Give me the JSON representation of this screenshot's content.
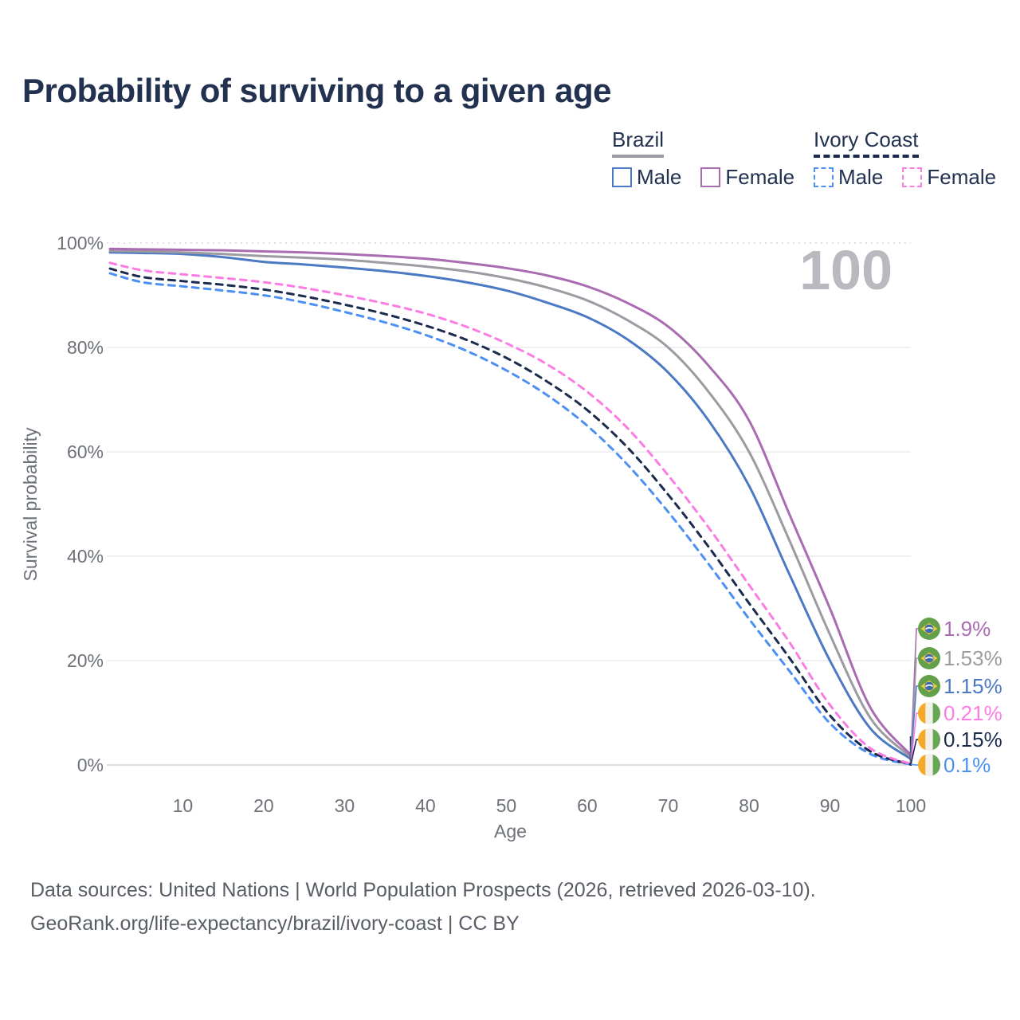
{
  "title": "Probability of surviving to a given age",
  "legend": {
    "groups": [
      {
        "label": "Brazil",
        "underline_color": "#9b9ba1",
        "underline_dashed": false,
        "items": [
          {
            "label": "Male",
            "color": "#4c79c4",
            "dashed": false
          },
          {
            "label": "Female",
            "color": "#a96cb1",
            "dashed": false
          }
        ]
      },
      {
        "label": "Ivory Coast",
        "underline_color": "#1b2b4d",
        "underline_dashed": true,
        "items": [
          {
            "label": "Male",
            "color": "#4b90f2",
            "dashed": true
          },
          {
            "label": "Female",
            "color": "#fb7de4",
            "dashed": true
          }
        ]
      }
    ]
  },
  "watermark_age": "100",
  "chart_data": {
    "type": "line",
    "title": "Probability of surviving to a given age",
    "xlabel": "Age",
    "ylabel": "Survival probability",
    "xlim": [
      1,
      100
    ],
    "ylim": [
      0,
      100
    ],
    "grid": true,
    "x_ticks": [
      10,
      20,
      30,
      40,
      50,
      60,
      70,
      80,
      90,
      100
    ],
    "y_tick_values": [
      0,
      20,
      40,
      60,
      80,
      100
    ],
    "y_tick_labels": [
      "0%",
      "20%",
      "40%",
      "60%",
      "80%",
      "100%"
    ],
    "x": [
      1,
      5,
      10,
      15,
      20,
      25,
      30,
      35,
      40,
      45,
      50,
      55,
      60,
      65,
      70,
      75,
      80,
      85,
      90,
      95,
      100
    ],
    "series": [
      {
        "name": "Brazil Female",
        "country": "Brazil",
        "sex": "Female",
        "flag": "brazil",
        "color": "#a96cb1",
        "dashed": false,
        "end_label": "1.9%",
        "values": [
          98.9,
          98.8,
          98.7,
          98.6,
          98.4,
          98.2,
          97.9,
          97.5,
          97.0,
          96.2,
          95.2,
          93.8,
          91.7,
          88.5,
          84.0,
          76.5,
          66.0,
          48.0,
          30.0,
          11.0,
          1.9
        ]
      },
      {
        "name": "Brazil Both sexes",
        "country": "Brazil",
        "sex": "Both",
        "flag": "brazil",
        "color": "#9b9ba1",
        "dashed": false,
        "end_label": "1.53%",
        "values": [
          98.5,
          98.4,
          98.2,
          97.9,
          97.5,
          97.2,
          96.8,
          96.2,
          95.5,
          94.6,
          93.3,
          91.5,
          89.0,
          85.2,
          80.0,
          71.5,
          60.0,
          43.0,
          25.0,
          9.0,
          1.53
        ]
      },
      {
        "name": "Brazil Male",
        "country": "Brazil",
        "sex": "Male",
        "flag": "brazil",
        "color": "#4c79c4",
        "dashed": false,
        "end_label": "1.15%",
        "values": [
          98.2,
          98.1,
          97.9,
          97.3,
          96.4,
          95.9,
          95.3,
          94.6,
          93.7,
          92.5,
          90.9,
          88.6,
          85.8,
          81.5,
          75.2,
          66.0,
          53.5,
          36.5,
          20.0,
          7.0,
          1.15
        ]
      },
      {
        "name": "Ivory Coast Female",
        "country": "Ivory Coast",
        "sex": "Female",
        "flag": "ivory-coast",
        "color": "#fb7de4",
        "dashed": true,
        "end_label": "0.21%",
        "values": [
          96.2,
          94.8,
          94.0,
          93.3,
          92.5,
          91.4,
          90.0,
          88.4,
          86.5,
          84.0,
          80.8,
          76.8,
          71.5,
          64.5,
          55.5,
          45.5,
          34.5,
          23.5,
          11.5,
          3.2,
          0.21
        ]
      },
      {
        "name": "Ivory Coast Both sexes",
        "country": "Ivory Coast",
        "sex": "Both",
        "flag": "ivory-coast",
        "color": "#1b2b4d",
        "dashed": true,
        "end_label": "0.15%",
        "values": [
          95.1,
          93.5,
          92.7,
          92.0,
          91.1,
          89.8,
          88.2,
          86.4,
          84.2,
          81.5,
          78.0,
          73.5,
          68.0,
          60.8,
          51.8,
          41.8,
          31.0,
          20.5,
          9.5,
          2.6,
          0.15
        ]
      },
      {
        "name": "Ivory Coast Male",
        "country": "Ivory Coast",
        "sex": "Male",
        "flag": "ivory-coast",
        "color": "#4b90f2",
        "dashed": true,
        "end_label": "0.1%",
        "values": [
          94.2,
          92.5,
          91.7,
          90.9,
          90.0,
          88.6,
          86.8,
          84.8,
          82.4,
          79.4,
          75.6,
          70.9,
          65.0,
          57.5,
          48.5,
          38.5,
          28.0,
          18.0,
          8.0,
          2.1,
          0.1
        ]
      }
    ],
    "legend_position": "top-right"
  },
  "flags": {
    "brazil": {
      "green": "#62a04a",
      "yellow": "#f3c53c",
      "blue": "#3e6cb0",
      "white": "#ffffff"
    },
    "ivory_coast": {
      "orange": "#f5a929",
      "white": "#f1f0ea",
      "green": "#67a653"
    }
  },
  "colors": {
    "title_text": "#233150",
    "axis_text": "#6d7178",
    "gridline": "#ececef",
    "watermark": "#b9b9bf",
    "footer_text": "#595e66",
    "marker_line": "#1b2b4d"
  },
  "footer": {
    "line1": "Data sources: United Nations | World Population Prospects (2026, retrieved 2026-03-10).",
    "line2": "GeoRank.org/life-expectancy/brazil/ivory-coast | CC BY"
  }
}
